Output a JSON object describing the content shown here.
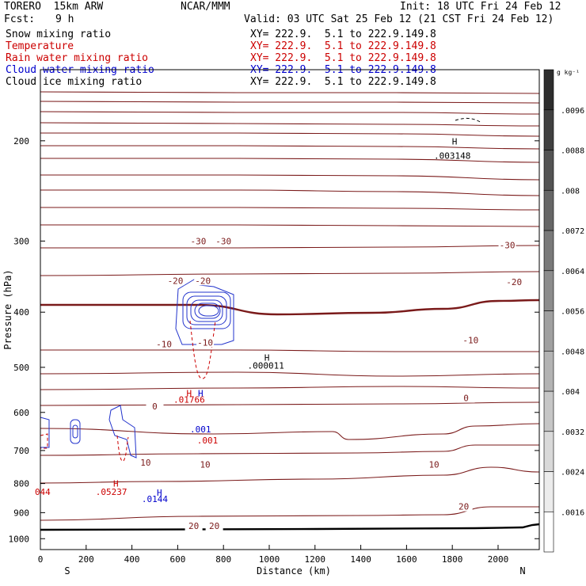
{
  "header": {
    "model_line": "TORERO  15km ARW",
    "center": "NCAR/MMM",
    "init": "Init: 18 UTC Fri 24 Feb 12",
    "fcst_label": "Fcst:",
    "fcst_value": "9 h",
    "valid": "Valid: 03 UTC Sat 25 Feb 12 (21 CST Fri 24 Feb 12)"
  },
  "fields": [
    {
      "name": "Snow mixing ratio",
      "xy": "XY= 222.9.  5.1 to 222.9.149.8",
      "color": "#000000"
    },
    {
      "name": "Temperature",
      "xy": "XY= 222.9.  5.1 to 222.9.149.8",
      "color": "#cc0000"
    },
    {
      "name": "Rain water mixing ratio",
      "xy": "XY= 222.9.  5.1 to 222.9.149.8",
      "color": "#cc0000"
    },
    {
      "name": "Cloud water mixing ratio",
      "xy": "XY= 222.9.  5.1 to 222.9.149.8",
      "color": "#0000cc"
    },
    {
      "name": "Cloud ice mixing ratio",
      "xy": "XY= 222.9.  5.1 to 222.9.149.8",
      "color": "#000000"
    }
  ],
  "chart_data": {
    "type": "cross-section contour",
    "xlabel": "Distance (km)",
    "ylabel": "Pressure (hPa)",
    "xlim": [
      0,
      2180
    ],
    "ylim": [
      150,
      1045
    ],
    "y_scale": "log",
    "x_ticks": [
      0,
      200,
      400,
      600,
      800,
      1000,
      1200,
      1400,
      1600,
      1800,
      2000
    ],
    "x_tick_labels": [
      "0",
      "200",
      "400",
      "600",
      "800",
      "1000",
      "1200",
      "1400",
      "1600",
      "1800",
      "2000"
    ],
    "y_ticks": [
      200,
      300,
      400,
      500,
      600,
      700,
      800,
      900,
      1000
    ],
    "y_tick_labels": [
      "200",
      "300",
      "400",
      "500",
      "600",
      "700",
      "800",
      "900",
      "1000"
    ],
    "end_labels": {
      "left": "S",
      "right": "N"
    },
    "colorbar": {
      "unit": "g kg⁻¹",
      "levels": [
        ".0016",
        ".0024",
        ".0032",
        ".004",
        ".0048",
        ".0056",
        ".0064",
        ".0072",
        ".008",
        ".0088",
        ".0096"
      ],
      "level_values": [
        0.0016,
        0.0024,
        0.0032,
        0.004,
        0.0048,
        0.0056,
        0.0064,
        0.0072,
        0.008,
        0.0088,
        0.0096
      ]
    },
    "temperature_contour_labels": [
      {
        "text": "-30",
        "x": 690,
        "p": 300
      },
      {
        "text": "-30",
        "x": 800,
        "p": 300
      },
      {
        "text": "-30",
        "x": 2040,
        "p": 305
      },
      {
        "text": "-20",
        "x": 590,
        "p": 352
      },
      {
        "text": "-20",
        "x": 710,
        "p": 352
      },
      {
        "text": "-20",
        "x": 2070,
        "p": 354
      },
      {
        "text": "-10",
        "x": 540,
        "p": 455
      },
      {
        "text": "-10",
        "x": 720,
        "p": 452
      },
      {
        "text": "-10",
        "x": 1880,
        "p": 448
      },
      {
        "text": "0",
        "x": 500,
        "p": 585
      },
      {
        "text": "0",
        "x": 1860,
        "p": 566
      },
      {
        "text": "10",
        "x": 460,
        "p": 735
      },
      {
        "text": "10",
        "x": 720,
        "p": 740
      },
      {
        "text": "10",
        "x": 1720,
        "p": 740
      },
      {
        "text": "20",
        "x": 670,
        "p": 950
      },
      {
        "text": "20",
        "x": 760,
        "p": 950
      },
      {
        "text": "20",
        "x": 1850,
        "p": 878
      }
    ],
    "annotations": [
      {
        "text": "H",
        "x": 1810,
        "p": 203,
        "color": "#000000"
      },
      {
        "text": ".003148",
        "x": 1800,
        "p": 215,
        "color": "#000000"
      },
      {
        "text": "H",
        "x": 990,
        "p": 487,
        "color": "#000000"
      },
      {
        "text": ".000011",
        "x": 985,
        "p": 503,
        "color": "#000000"
      },
      {
        "text": "H",
        "x": 650,
        "p": 562,
        "color": "#cc0000"
      },
      {
        "text": "H",
        "x": 700,
        "p": 562,
        "color": "#0000cc"
      },
      {
        "text": ".01766",
        "x": 650,
        "p": 577,
        "color": "#cc0000"
      },
      {
        "text": ".001",
        "x": 700,
        "p": 650,
        "color": "#0000cc"
      },
      {
        "text": ".001",
        "x": 730,
        "p": 680,
        "color": "#cc0000"
      },
      {
        "text": "H",
        "x": 330,
        "p": 810,
        "color": "#cc0000"
      },
      {
        "text": ".05237",
        "x": 310,
        "p": 838,
        "color": "#cc0000"
      },
      {
        "text": "H",
        "x": 520,
        "p": 840,
        "color": "#0000cc"
      },
      {
        "text": ".0144",
        "x": 500,
        "p": 862,
        "color": "#0000cc"
      },
      {
        "text": "044",
        "x": 10,
        "p": 838,
        "color": "#cc0000"
      }
    ]
  }
}
